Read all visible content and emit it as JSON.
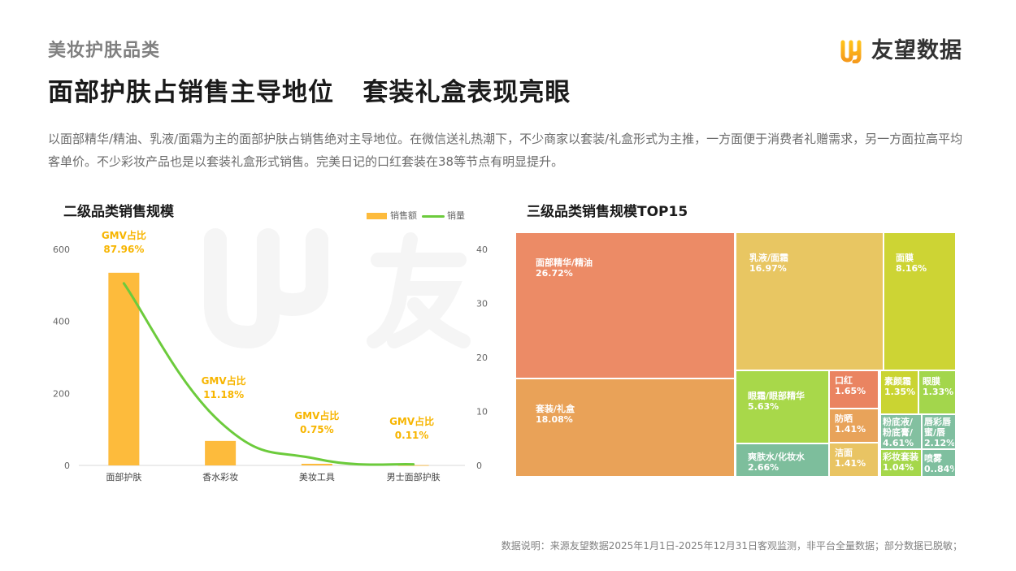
{
  "header": {
    "category": "美妆护肤品类",
    "headline": "面部护肤占销售主导地位   套装礼盒表现亮眼",
    "brand": "友望数据"
  },
  "description": "以面部精华/精油、乳液/面霜为主的面部护肤占销售绝对主导地位。在微信送礼热潮下，不少商家以套装/礼盒形式为主推，一方面便于消费者礼赠需求，另一方面拉高平均客单价。不少彩妆产品也是以套装礼盒形式销售。完美日记的口红套装在38等节点有明显提升。",
  "footer": "数据说明：来源友望数据2025年1月1日-2025年12月31日客观监测，非平台全量数据；部分数据已脱敏；",
  "colors": {
    "bar": "#fdbb3c",
    "line": "#6ccb3c",
    "annotation": "#f7b500"
  },
  "chart_data": [
    {
      "type": "bar",
      "title": "二级品类销售规模",
      "categories": [
        "面部护肤",
        "香水彩妆",
        "美妆工具",
        "男士面部护肤"
      ],
      "series": [
        {
          "name": "销售额",
          "type": "bar",
          "axis": "left",
          "values": [
            535,
            68,
            4.5,
            0.7
          ]
        },
        {
          "name": "销量",
          "type": "line",
          "axis": "right",
          "values": [
            33.7,
            8.0,
            1.2,
            0.2
          ]
        }
      ],
      "annotations": [
        {
          "label": "GMV占比",
          "value": "87.96%"
        },
        {
          "label": "GMV占比",
          "value": "11.18%"
        },
        {
          "label": "GMV占比",
          "value": "0.75%"
        },
        {
          "label": "GMV占比",
          "value": "0.11%"
        }
      ],
      "y_left": {
        "ticks": [
          "0",
          "200",
          "400",
          "600"
        ],
        "range": [
          0,
          600
        ]
      },
      "y_right": {
        "ticks": [
          "0",
          "10",
          "20",
          "30",
          "40"
        ],
        "range": [
          0,
          40
        ]
      },
      "legend": {
        "position": "top-right",
        "items": [
          "销售额",
          "销量"
        ]
      },
      "grid": false
    },
    {
      "type": "treemap",
      "title": "三级品类销售规模TOP15",
      "items": [
        {
          "name": "面部精华/精油",
          "value": "26.72%",
          "color": "#ec8b66"
        },
        {
          "name": "套装/礼盒",
          "value": "18.08%",
          "color": "#e9a258"
        },
        {
          "name": "乳液/面霜",
          "value": "16.97%",
          "color": "#e8c662"
        },
        {
          "name": "面膜",
          "value": "8.16%",
          "color": "#cdd434"
        },
        {
          "name": "眼霜/眼部精华",
          "value": "5.63%",
          "color": "#a8d84a"
        },
        {
          "name": "爽肤水/化妆水",
          "value": "2.66%",
          "color": "#7dbe9c"
        },
        {
          "name": "口红",
          "value": "1.65%",
          "color": "#ea8461"
        },
        {
          "name": "防晒",
          "value": "1.41%",
          "color": "#e8a35a"
        },
        {
          "name": "洁面",
          "value": "1.41%",
          "color": "#e9c463"
        },
        {
          "name": "素颜霜",
          "value": "1.35%",
          "color": "#cad432"
        },
        {
          "name": "眼膜",
          "value": "1.33%",
          "color": "#a3d64c"
        },
        {
          "name": "粉底液/粉底膏/粉底霜",
          "value": "4.61%",
          "color": "#83c0a0"
        },
        {
          "name": "唇彩唇蜜/唇釉",
          "value": "2.12%",
          "color": "#80bfa0"
        },
        {
          "name": "彩妆套装",
          "value": "1.04%",
          "color": "#a5d74b"
        },
        {
          "name": "喷雾",
          "value": "0..84%",
          "color": "#7fbf9f"
        }
      ]
    }
  ]
}
